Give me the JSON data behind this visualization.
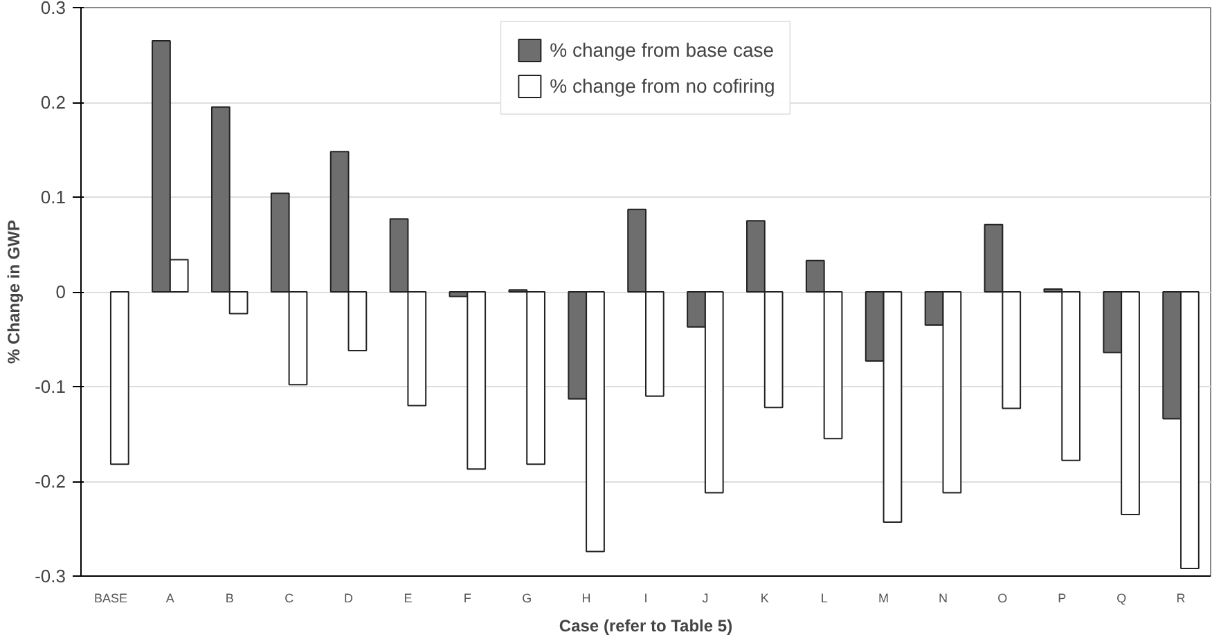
{
  "chart_data": {
    "type": "bar",
    "xlabel": "Case (refer to Table 5)",
    "ylabel": "% Change in GWP",
    "categories": [
      "BASE",
      "A",
      "B",
      "C",
      "D",
      "E",
      "F",
      "G",
      "H",
      "I",
      "J",
      "K",
      "L",
      "M",
      "N",
      "O",
      "P",
      "Q",
      "R"
    ],
    "series": [
      {
        "name": "% change from base case",
        "color": "#6e6e6e",
        "values": [
          null,
          0.265,
          0.195,
          0.104,
          0.148,
          0.077,
          -0.005,
          0.002,
          -0.113,
          0.087,
          -0.037,
          0.075,
          0.033,
          -0.073,
          -0.035,
          0.071,
          0.003,
          -0.064,
          -0.134
        ]
      },
      {
        "name": "% change from no cofiring",
        "color": "#ffffff",
        "values": [
          -0.182,
          0.034,
          -0.023,
          -0.098,
          -0.062,
          -0.12,
          -0.187,
          -0.182,
          -0.274,
          -0.11,
          -0.212,
          -0.122,
          -0.155,
          -0.243,
          -0.212,
          -0.123,
          -0.178,
          -0.235,
          -0.292
        ]
      }
    ],
    "ylim": [
      -0.3,
      0.3
    ],
    "yticks": [
      -0.3,
      -0.2,
      -0.1,
      0,
      0.1,
      0.2,
      0.3
    ],
    "grid": "y",
    "legend": "top"
  }
}
